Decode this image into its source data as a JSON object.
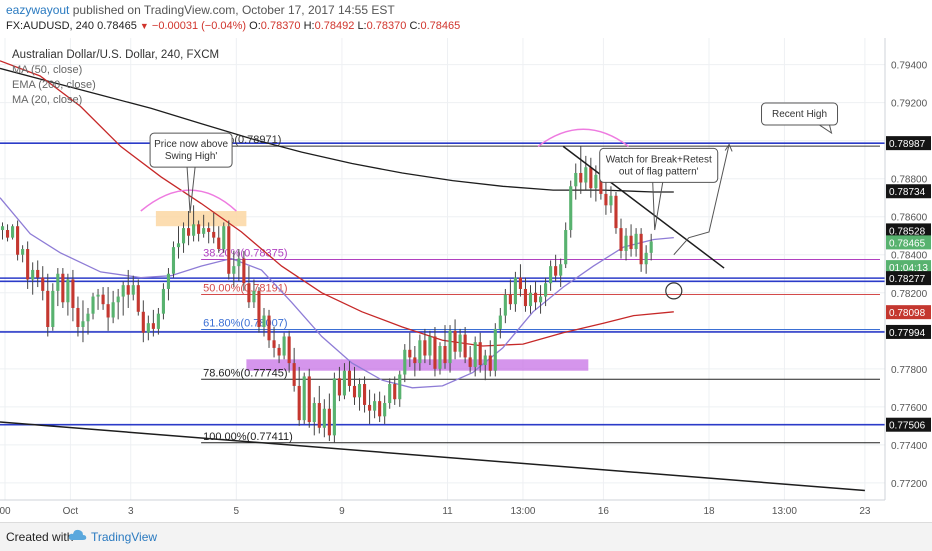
{
  "header": {
    "user": "eazywayout",
    "published": "published on TradingView.com, October 17, 2017 14:55 EST",
    "symbol": "FX:AUDUSD, 240",
    "last": "0.78465",
    "change": "−0.00031 (−0.04%)",
    "ohlc": {
      "o_label": "O:",
      "o": "0.78370",
      "h_label": "H:",
      "h": "0.78492",
      "l_label": "L:",
      "l": "0.78370",
      "c_label": "C:",
      "c": "0.78465"
    }
  },
  "legend": {
    "title": "Australian Dollar/U.S. Dollar, 240, FXCM",
    "indicators": [
      "MA (50, close)",
      "EMA (200, close)",
      "MA (20, close)"
    ]
  },
  "footer": {
    "created_with": "Created with",
    "brand": "TradingView"
  },
  "colors": {
    "up": "#58b26f",
    "down": "#c4372f",
    "fib_line": "#d44a4a",
    "fib_blue": "#2b3bc8",
    "ma50": "#1d1d1d",
    "ema200": "#c62828",
    "ma20": "#8e7cd6",
    "highlight_purple": "#c771e6",
    "highlight_orange": "#fbd7a3",
    "arc": "#ee7be0"
  },
  "chart_data": {
    "type": "candlestick",
    "title": "Australian Dollar/U.S. Dollar, 240, FXCM",
    "ylim": [
      0.7711,
      0.7954
    ],
    "xlim": [
      0,
      176
    ],
    "y_ticks": [
      0.772,
      0.774,
      0.776,
      0.778,
      0.78,
      0.782,
      0.784,
      0.786,
      0.788,
      0.79,
      0.792,
      0.794
    ],
    "y_tick_labels": [
      "0.77200",
      "0.77400",
      "0.77600",
      "0.77800",
      "0.78000",
      "0.78200",
      "0.78400",
      "0.78600",
      "0.78800",
      "0.79000",
      "0.79200",
      "0.79400"
    ],
    "x_ticks": [
      {
        "x": 1,
        "label": "00"
      },
      {
        "x": 14,
        "label": "Oct"
      },
      {
        "x": 26,
        "label": "3"
      },
      {
        "x": 47,
        "label": "5"
      },
      {
        "x": 68,
        "label": "9"
      },
      {
        "x": 89,
        "label": "11"
      },
      {
        "x": 104,
        "label": "13:00"
      },
      {
        "x": 120,
        "label": "16"
      },
      {
        "x": 141,
        "label": "18"
      },
      {
        "x": 156,
        "label": "13:00"
      },
      {
        "x": 172,
        "label": "23"
      }
    ],
    "price_labels": [
      {
        "value": 0.78987,
        "label": "0.78987",
        "style": "dark"
      },
      {
        "value": 0.78734,
        "label": "0.78734",
        "style": "dark"
      },
      {
        "value": 0.78528,
        "label": "0.78528",
        "style": "dark"
      },
      {
        "value": 0.78465,
        "label": "0.78465",
        "style": "green"
      },
      {
        "value": 0.78335,
        "label": "01:04:13",
        "style": "green"
      },
      {
        "value": 0.78277,
        "label": "0.78277",
        "style": "dark"
      },
      {
        "value": 0.78098,
        "label": "0.78098",
        "style": "red"
      },
      {
        "value": 0.77994,
        "label": "0.77994",
        "style": "dark"
      },
      {
        "value": 0.77506,
        "label": "0.77506",
        "style": "dark"
      }
    ],
    "fib_levels": [
      {
        "value": 0.78971,
        "label": "0.00%(0.78971)",
        "color": "#333333"
      },
      {
        "value": 0.78375,
        "label": "38.20%(0.78375)",
        "color": "#b040c0"
      },
      {
        "value": 0.78191,
        "label": "50.00%(0.78191)",
        "color": "#d44a4a"
      },
      {
        "value": 0.78007,
        "label": "61.80%(0.78007)",
        "color": "#3b6fd4"
      },
      {
        "value": 0.77745,
        "label": "78.60%(0.77745)",
        "color": "#222222"
      },
      {
        "value": 0.77411,
        "label": "100.00%(0.77411)",
        "color": "#222222"
      }
    ],
    "horizontal_lines": [
      {
        "value": 0.78987,
        "color": "#2b3bc8"
      },
      {
        "value": 0.78277,
        "color": "#2b3bc8"
      },
      {
        "value": 0.7826,
        "color": "#2b3bc8"
      },
      {
        "value": 0.77994,
        "color": "#2b3bc8"
      },
      {
        "value": 0.77506,
        "color": "#2b3bc8"
      }
    ],
    "candles": [
      [
        0.7853,
        0.7857,
        0.7848,
        0.7855
      ],
      [
        0.7853,
        0.7856,
        0.7847,
        0.7849
      ],
      [
        0.7849,
        0.7856,
        0.7848,
        0.7855
      ],
      [
        0.7855,
        0.7858,
        0.7837,
        0.784
      ],
      [
        0.784,
        0.7845,
        0.7836,
        0.7843
      ],
      [
        0.7843,
        0.7847,
        0.7822,
        0.7827
      ],
      [
        0.7827,
        0.7836,
        0.7819,
        0.7832
      ],
      [
        0.7832,
        0.7837,
        0.7823,
        0.7828
      ],
      [
        0.7828,
        0.7834,
        0.7816,
        0.7821
      ],
      [
        0.7821,
        0.783,
        0.7797,
        0.7802
      ],
      [
        0.7802,
        0.7825,
        0.78,
        0.7821
      ],
      [
        0.7821,
        0.7833,
        0.7813,
        0.783
      ],
      [
        0.783,
        0.7833,
        0.7812,
        0.7815
      ],
      [
        0.7815,
        0.783,
        0.7808,
        0.7827
      ],
      [
        0.7827,
        0.7832,
        0.7805,
        0.7812
      ],
      [
        0.7812,
        0.7818,
        0.7797,
        0.7802
      ],
      [
        0.7802,
        0.7816,
        0.7794,
        0.7805
      ],
      [
        0.7805,
        0.7812,
        0.7798,
        0.7809
      ],
      [
        0.7809,
        0.782,
        0.7806,
        0.7818
      ],
      [
        0.7818,
        0.7822,
        0.7811,
        0.7819
      ],
      [
        0.7819,
        0.7823,
        0.7811,
        0.7814
      ],
      [
        0.7814,
        0.7823,
        0.78,
        0.7807
      ],
      [
        0.7807,
        0.7821,
        0.7804,
        0.7815
      ],
      [
        0.7815,
        0.7822,
        0.7806,
        0.7818
      ],
      [
        0.7818,
        0.7826,
        0.7808,
        0.7824
      ],
      [
        0.7824,
        0.7832,
        0.7812,
        0.7819
      ],
      [
        0.7819,
        0.7829,
        0.7816,
        0.7824
      ],
      [
        0.7824,
        0.7827,
        0.7808,
        0.781
      ],
      [
        0.781,
        0.7816,
        0.7794,
        0.7799
      ],
      [
        0.7799,
        0.7808,
        0.7795,
        0.7804
      ],
      [
        0.7804,
        0.7811,
        0.7797,
        0.7801
      ],
      [
        0.7801,
        0.7812,
        0.7798,
        0.7809
      ],
      [
        0.7809,
        0.7825,
        0.7806,
        0.7822
      ],
      [
        0.7822,
        0.7833,
        0.7816,
        0.783
      ],
      [
        0.783,
        0.7847,
        0.7828,
        0.7844
      ],
      [
        0.7844,
        0.7855,
        0.7838,
        0.7846
      ],
      [
        0.7846,
        0.7857,
        0.7841,
        0.7854
      ],
      [
        0.7854,
        0.7863,
        0.7845,
        0.785
      ],
      [
        0.785,
        0.7866,
        0.7847,
        0.7856
      ],
      [
        0.7856,
        0.7858,
        0.7847,
        0.7851
      ],
      [
        0.7851,
        0.7861,
        0.7849,
        0.7854
      ],
      [
        0.7854,
        0.7857,
        0.7846,
        0.7852
      ],
      [
        0.7852,
        0.7862,
        0.7846,
        0.7849
      ],
      [
        0.7849,
        0.7855,
        0.7841,
        0.7843
      ],
      [
        0.7843,
        0.7857,
        0.7841,
        0.7855
      ],
      [
        0.7855,
        0.7858,
        0.7827,
        0.783
      ],
      [
        0.783,
        0.7842,
        0.7823,
        0.7834
      ],
      [
        0.7834,
        0.7843,
        0.7826,
        0.7838
      ],
      [
        0.7838,
        0.7842,
        0.7821,
        0.7825
      ],
      [
        0.7825,
        0.7834,
        0.7812,
        0.7815
      ],
      [
        0.7815,
        0.7827,
        0.7812,
        0.7821
      ],
      [
        0.7821,
        0.7823,
        0.7799,
        0.7802
      ],
      [
        0.7802,
        0.7812,
        0.7797,
        0.7808
      ],
      [
        0.7808,
        0.7811,
        0.7791,
        0.7795
      ],
      [
        0.7795,
        0.7802,
        0.7786,
        0.7791
      ],
      [
        0.7791,
        0.7793,
        0.7783,
        0.7787
      ],
      [
        0.7787,
        0.7799,
        0.7785,
        0.7797
      ],
      [
        0.7797,
        0.78,
        0.7778,
        0.7783
      ],
      [
        0.7783,
        0.7791,
        0.7768,
        0.7771
      ],
      [
        0.7771,
        0.7781,
        0.775,
        0.7753
      ],
      [
        0.7753,
        0.7778,
        0.7751,
        0.7776
      ],
      [
        0.7776,
        0.778,
        0.7749,
        0.7752
      ],
      [
        0.7752,
        0.7765,
        0.7745,
        0.7762
      ],
      [
        0.7762,
        0.7771,
        0.7746,
        0.7749
      ],
      [
        0.7749,
        0.7764,
        0.7744,
        0.7759
      ],
      [
        0.7759,
        0.7767,
        0.7742,
        0.7745
      ],
      [
        0.7745,
        0.7778,
        0.7741,
        0.7775
      ],
      [
        0.7775,
        0.7781,
        0.7763,
        0.7766
      ],
      [
        0.7766,
        0.7783,
        0.7764,
        0.7779
      ],
      [
        0.7779,
        0.7784,
        0.7768,
        0.7771
      ],
      [
        0.7771,
        0.7781,
        0.7761,
        0.7765
      ],
      [
        0.7765,
        0.7775,
        0.7758,
        0.7772
      ],
      [
        0.7772,
        0.7776,
        0.7757,
        0.7761
      ],
      [
        0.7761,
        0.7769,
        0.7751,
        0.7758
      ],
      [
        0.7758,
        0.7767,
        0.7754,
        0.7763
      ],
      [
        0.7763,
        0.7768,
        0.7752,
        0.7755
      ],
      [
        0.7755,
        0.7766,
        0.7751,
        0.7762
      ],
      [
        0.7762,
        0.7775,
        0.7759,
        0.7772
      ],
      [
        0.7772,
        0.7776,
        0.7761,
        0.7764
      ],
      [
        0.7764,
        0.7779,
        0.776,
        0.7777
      ],
      [
        0.7777,
        0.7793,
        0.7773,
        0.779
      ],
      [
        0.779,
        0.7799,
        0.7781,
        0.7786
      ],
      [
        0.7786,
        0.7792,
        0.7776,
        0.7783
      ],
      [
        0.7783,
        0.7798,
        0.7779,
        0.7795
      ],
      [
        0.7795,
        0.7801,
        0.7783,
        0.7787
      ],
      [
        0.7787,
        0.78,
        0.7782,
        0.7797
      ],
      [
        0.7797,
        0.7802,
        0.7776,
        0.778
      ],
      [
        0.778,
        0.7794,
        0.7777,
        0.7792
      ],
      [
        0.7792,
        0.7803,
        0.778,
        0.7783
      ],
      [
        0.7783,
        0.7803,
        0.7778,
        0.78
      ],
      [
        0.78,
        0.7806,
        0.7785,
        0.7789
      ],
      [
        0.7789,
        0.7801,
        0.7786,
        0.7798
      ],
      [
        0.7798,
        0.7802,
        0.7783,
        0.7786
      ],
      [
        0.7786,
        0.7792,
        0.7778,
        0.7781
      ],
      [
        0.7781,
        0.7797,
        0.7776,
        0.7794
      ],
      [
        0.7794,
        0.7799,
        0.7778,
        0.7782
      ],
      [
        0.7782,
        0.779,
        0.7774,
        0.7787
      ],
      [
        0.7787,
        0.7795,
        0.7776,
        0.7779
      ],
      [
        0.7779,
        0.7804,
        0.7776,
        0.7801
      ],
      [
        0.7801,
        0.7812,
        0.7796,
        0.7808
      ],
      [
        0.7808,
        0.7822,
        0.7804,
        0.7819
      ],
      [
        0.7819,
        0.7827,
        0.7811,
        0.7814
      ],
      [
        0.7814,
        0.7831,
        0.781,
        0.7828
      ],
      [
        0.7828,
        0.7835,
        0.7818,
        0.7822
      ],
      [
        0.7822,
        0.7828,
        0.781,
        0.7813
      ],
      [
        0.7813,
        0.7824,
        0.7809,
        0.782
      ],
      [
        0.782,
        0.7826,
        0.7811,
        0.7815
      ],
      [
        0.7815,
        0.7824,
        0.7809,
        0.7818
      ],
      [
        0.7818,
        0.7828,
        0.7813,
        0.7825
      ],
      [
        0.7825,
        0.7837,
        0.7821,
        0.7834
      ],
      [
        0.7834,
        0.784,
        0.7826,
        0.7829
      ],
      [
        0.7829,
        0.7838,
        0.7823,
        0.7835
      ],
      [
        0.7835,
        0.7857,
        0.7833,
        0.7853
      ],
      [
        0.7853,
        0.7879,
        0.7849,
        0.7876
      ],
      [
        0.7876,
        0.7888,
        0.7869,
        0.7883
      ],
      [
        0.7883,
        0.7897,
        0.7872,
        0.7878
      ],
      [
        0.7878,
        0.7892,
        0.7874,
        0.7886
      ],
      [
        0.7886,
        0.7891,
        0.787,
        0.7875
      ],
      [
        0.7875,
        0.7887,
        0.7868,
        0.7882
      ],
      [
        0.7882,
        0.7885,
        0.7869,
        0.7872
      ],
      [
        0.7872,
        0.7878,
        0.7861,
        0.7866
      ],
      [
        0.7866,
        0.7876,
        0.7862,
        0.7871
      ],
      [
        0.7871,
        0.7873,
        0.7851,
        0.7854
      ],
      [
        0.7854,
        0.7859,
        0.7838,
        0.7842
      ],
      [
        0.7842,
        0.7854,
        0.7837,
        0.785
      ],
      [
        0.785,
        0.7856,
        0.7839,
        0.7843
      ],
      [
        0.7843,
        0.7854,
        0.7839,
        0.7851
      ],
      [
        0.7851,
        0.7854,
        0.7831,
        0.7835
      ],
      [
        0.7835,
        0.7845,
        0.783,
        0.7841
      ],
      [
        0.7841,
        0.7851,
        0.7837,
        0.7847
      ]
    ],
    "moving_averages": [
      {
        "name": "MA (50, close)",
        "color": "#1d1d1d",
        "points": [
          [
            0,
            0.7938
          ],
          [
            10,
            0.7931
          ],
          [
            20,
            0.7924
          ],
          [
            30,
            0.7917
          ],
          [
            40,
            0.7909
          ],
          [
            50,
            0.7901
          ],
          [
            60,
            0.7894
          ],
          [
            70,
            0.7888
          ],
          [
            80,
            0.7883
          ],
          [
            90,
            0.7879
          ],
          [
            100,
            0.7876
          ],
          [
            110,
            0.7874
          ],
          [
            120,
            0.7874
          ],
          [
            130,
            0.7873
          ],
          [
            134,
            0.7873
          ]
        ]
      },
      {
        "name": "EMA (200, close)",
        "color": "#c62828",
        "points": [
          [
            0,
            0.7942
          ],
          [
            8,
            0.7934
          ],
          [
            16,
            0.7918
          ],
          [
            24,
            0.7897
          ],
          [
            32,
            0.7881
          ],
          [
            40,
            0.7867
          ],
          [
            48,
            0.7852
          ],
          [
            56,
            0.7834
          ],
          [
            64,
            0.782
          ],
          [
            72,
            0.781
          ],
          [
            80,
            0.7802
          ],
          [
            88,
            0.7795
          ],
          [
            96,
            0.7792
          ],
          [
            104,
            0.7793
          ],
          [
            112,
            0.7799
          ],
          [
            120,
            0.7804
          ],
          [
            126,
            0.7808
          ],
          [
            134,
            0.781
          ]
        ]
      },
      {
        "name": "MA (20, close)",
        "color": "#8e7cd6",
        "points": [
          [
            0,
            0.787
          ],
          [
            6,
            0.7851
          ],
          [
            12,
            0.7841
          ],
          [
            20,
            0.7831
          ],
          [
            28,
            0.7828
          ],
          [
            34,
            0.7829
          ],
          [
            40,
            0.7834
          ],
          [
            46,
            0.7838
          ],
          [
            52,
            0.7832
          ],
          [
            58,
            0.7815
          ],
          [
            64,
            0.7797
          ],
          [
            70,
            0.7783
          ],
          [
            76,
            0.7774
          ],
          [
            82,
            0.777
          ],
          [
            88,
            0.7771
          ],
          [
            94,
            0.7778
          ],
          [
            100,
            0.7791
          ],
          [
            106,
            0.781
          ],
          [
            112,
            0.7823
          ],
          [
            118,
            0.7834
          ],
          [
            124,
            0.7844
          ],
          [
            130,
            0.7848
          ],
          [
            134,
            0.7849
          ]
        ]
      }
    ],
    "zones": [
      {
        "x0": 31,
        "x1": 49,
        "y0": 0.7855,
        "y1": 0.7863,
        "color": "#fbd7a3"
      },
      {
        "x0": 49,
        "x1": 117,
        "y0": 0.7779,
        "y1": 0.7785,
        "color": "#c771e6"
      }
    ],
    "annotations": [
      {
        "type": "callout",
        "text": [
          "Price now above",
          "Swing High'"
        ],
        "x": 38,
        "y": 0.7895
      },
      {
        "type": "callout",
        "text": [
          "Watch for Break+Retest",
          "out of flag pattern'"
        ],
        "x": 131,
        "y": 0.7887
      },
      {
        "type": "callout",
        "text": [
          "Recent High"
        ],
        "x": 159,
        "y": 0.7914
      }
    ],
    "trend_lines": [
      {
        "x0": 112,
        "y0": 0.7897,
        "x1": 144,
        "y1": 0.7833,
        "color": "#1d1d1d"
      },
      {
        "x0": 0,
        "y0": 0.7752,
        "x1": 172,
        "y1": 0.7716,
        "color": "#1d1d1d"
      }
    ]
  }
}
